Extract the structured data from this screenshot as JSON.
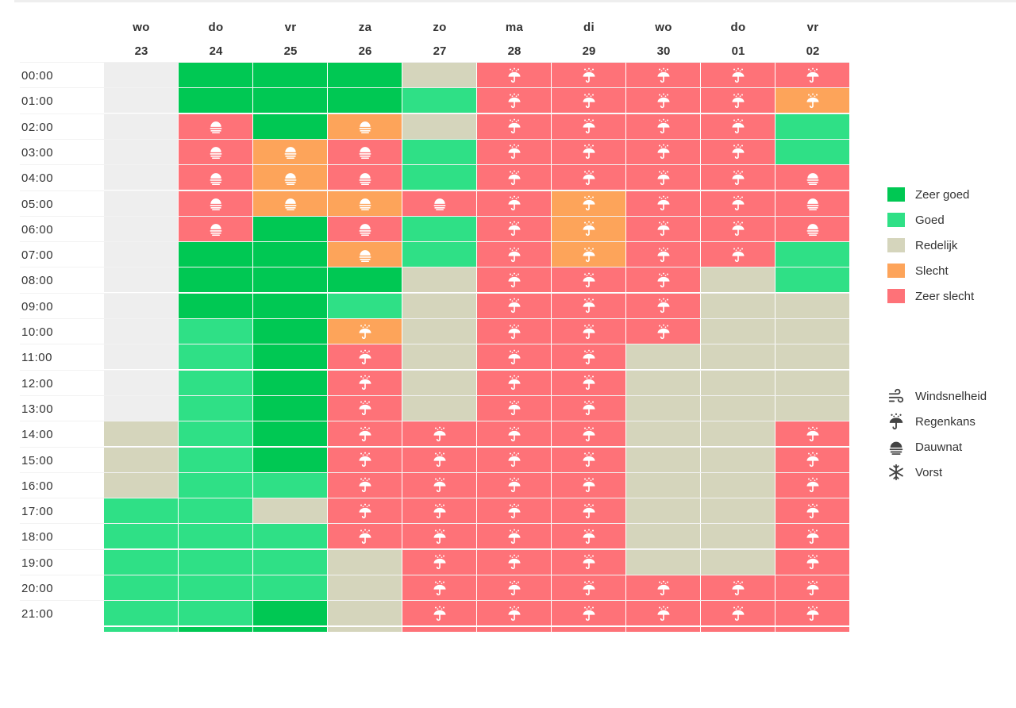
{
  "colors": {
    "zeer_goed": "#00c853",
    "goed": "#2fe086",
    "redelijk": "#d5d5bc",
    "slecht": "#fda45a",
    "zeer_slecht": "#fe7278",
    "geen": "#eeeeee"
  },
  "days": [
    {
      "name": "wo",
      "num": "23"
    },
    {
      "name": "do",
      "num": "24"
    },
    {
      "name": "vr",
      "num": "25"
    },
    {
      "name": "za",
      "num": "26"
    },
    {
      "name": "zo",
      "num": "27"
    },
    {
      "name": "ma",
      "num": "28"
    },
    {
      "name": "di",
      "num": "29"
    },
    {
      "name": "wo",
      "num": "30"
    },
    {
      "name": "do",
      "num": "01"
    },
    {
      "name": "vr",
      "num": "02"
    }
  ],
  "hours": [
    "00:00",
    "01:00",
    "02:00",
    "03:00",
    "04:00",
    "05:00",
    "06:00",
    "07:00",
    "08:00",
    "09:00",
    "10:00",
    "11:00",
    "12:00",
    "13:00",
    "14:00",
    "15:00",
    "16:00",
    "17:00",
    "18:00",
    "19:00",
    "20:00",
    "21:00"
  ],
  "grid": [
    [
      "E:",
      "A:",
      "A:",
      "A:",
      "R:",
      "X:rain",
      "X:rain",
      "X:rain",
      "X:rain",
      "X:rain"
    ],
    [
      "E:",
      "A:",
      "A:",
      "A:",
      "G:",
      "X:rain",
      "X:rain",
      "X:rain",
      "X:rain",
      "S:rain"
    ],
    [
      "E:",
      "X:dew",
      "A:",
      "S:dew",
      "R:",
      "X:rain",
      "X:rain",
      "X:rain",
      "X:rain",
      "G:"
    ],
    [
      "E:",
      "X:dew",
      "S:dew",
      "X:dew",
      "G:",
      "X:rain",
      "X:rain",
      "X:rain",
      "X:rain",
      "G:"
    ],
    [
      "E:",
      "X:dew",
      "S:dew",
      "X:dew",
      "G:",
      "X:rain",
      "X:rain",
      "X:rain",
      "X:rain",
      "X:dew"
    ],
    [
      "E:",
      "X:dew",
      "S:dew",
      "S:dew",
      "X:dew",
      "X:rain",
      "S:rain",
      "X:rain",
      "X:rain",
      "X:dew"
    ],
    [
      "E:",
      "X:dew",
      "A:",
      "X:dew",
      "G:",
      "X:rain",
      "S:rain",
      "X:rain",
      "X:rain",
      "X:dew"
    ],
    [
      "E:",
      "A:",
      "A:",
      "S:dew",
      "G:",
      "X:rain",
      "S:rain",
      "X:rain",
      "X:rain",
      "G:"
    ],
    [
      "E:",
      "A:",
      "A:",
      "A:",
      "R:",
      "X:rain",
      "X:rain",
      "X:rain",
      "R:",
      "G:"
    ],
    [
      "E:",
      "A:",
      "A:",
      "G:",
      "R:",
      "X:rain",
      "X:rain",
      "X:rain",
      "R:",
      "R:"
    ],
    [
      "E:",
      "G:",
      "A:",
      "S:rain",
      "R:",
      "X:rain",
      "X:rain",
      "X:rain",
      "R:",
      "R:"
    ],
    [
      "E:",
      "G:",
      "A:",
      "X:rain",
      "R:",
      "X:rain",
      "X:rain",
      "R:",
      "R:",
      "R:"
    ],
    [
      "E:",
      "G:",
      "A:",
      "X:rain",
      "R:",
      "X:rain",
      "X:rain",
      "R:",
      "R:",
      "R:"
    ],
    [
      "E:",
      "G:",
      "A:",
      "X:rain",
      "R:",
      "X:rain",
      "X:rain",
      "R:",
      "R:",
      "R:"
    ],
    [
      "R:",
      "G:",
      "A:",
      "X:rain",
      "X:rain",
      "X:rain",
      "X:rain",
      "R:",
      "R:",
      "X:rain"
    ],
    [
      "R:",
      "G:",
      "A:",
      "X:rain",
      "X:rain",
      "X:rain",
      "X:rain",
      "R:",
      "R:",
      "X:rain"
    ],
    [
      "R:",
      "G:",
      "G:",
      "X:rain",
      "X:rain",
      "X:rain",
      "X:rain",
      "R:",
      "R:",
      "X:rain"
    ],
    [
      "G:",
      "G:",
      "R:",
      "X:rain",
      "X:rain",
      "X:rain",
      "X:rain",
      "R:",
      "R:",
      "X:rain"
    ],
    [
      "G:",
      "G:",
      "G:",
      "X:rain",
      "X:rain",
      "X:rain",
      "X:rain",
      "R:",
      "R:",
      "X:rain"
    ],
    [
      "G:",
      "G:",
      "G:",
      "R:",
      "X:rain",
      "X:rain",
      "X:rain",
      "R:",
      "R:",
      "X:rain"
    ],
    [
      "G:",
      "G:",
      "G:",
      "R:",
      "X:rain",
      "X:rain",
      "X:rain",
      "X:rain",
      "X:rain",
      "X:rain"
    ],
    [
      "G:",
      "G:",
      "A:",
      "R:",
      "X:rain",
      "X:rain",
      "X:rain",
      "X:rain",
      "X:rain",
      "X:rain"
    ]
  ],
  "grid_partial_row": [
    "G:",
    "A:",
    "A:",
    "R:",
    "X:",
    "X:",
    "X:",
    "X:",
    "X:",
    "X:"
  ],
  "legend": {
    "quality": [
      {
        "key": "zeer_goed",
        "label": "Zeer goed"
      },
      {
        "key": "goed",
        "label": "Goed"
      },
      {
        "key": "redelijk",
        "label": "Redelijk"
      },
      {
        "key": "slecht",
        "label": "Slecht"
      },
      {
        "key": "zeer_slecht",
        "label": "Zeer slecht"
      }
    ],
    "icons": [
      {
        "icon": "wind-icon",
        "label": "Windsnelheid"
      },
      {
        "icon": "rain-umbrella-icon",
        "label": "Regenkans"
      },
      {
        "icon": "dew-icon",
        "label": "Dauwnat"
      },
      {
        "icon": "snowflake-icon",
        "label": "Vorst"
      }
    ]
  }
}
